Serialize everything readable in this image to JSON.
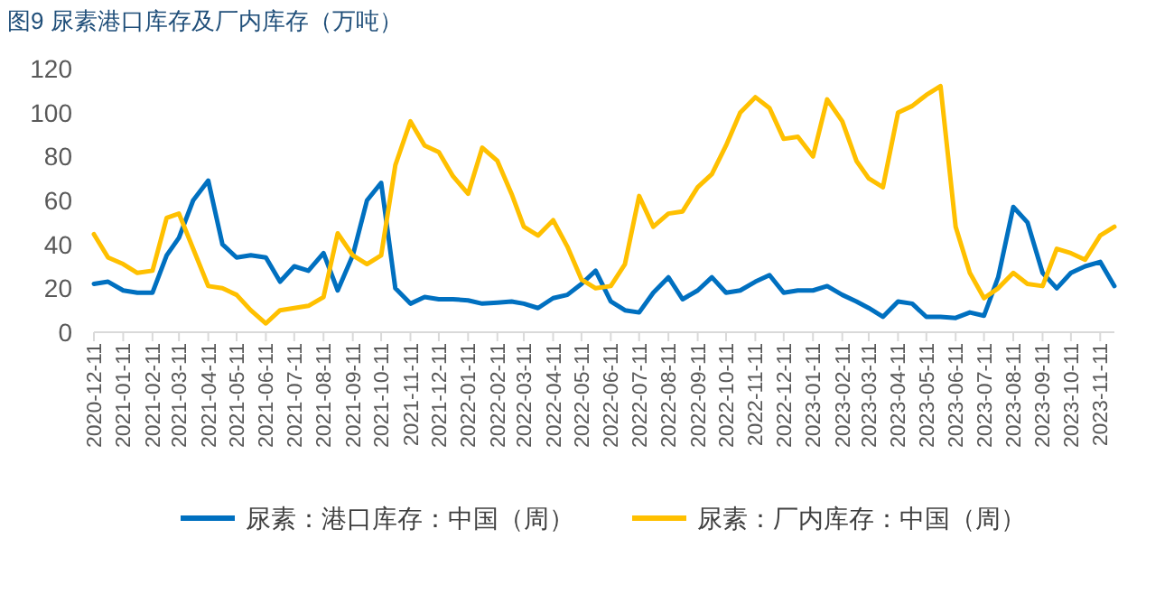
{
  "chart_data": {
    "type": "line",
    "title": "图9 尿素港口库存及厂内库存（万吨）",
    "x": [
      "2020-12-11",
      "2020-12-26",
      "2021-01-11",
      "2021-01-26",
      "2021-02-11",
      "2021-02-26",
      "2021-03-11",
      "2021-03-26",
      "2021-04-11",
      "2021-04-26",
      "2021-05-11",
      "2021-05-26",
      "2021-06-11",
      "2021-06-26",
      "2021-07-11",
      "2021-07-26",
      "2021-08-11",
      "2021-08-26",
      "2021-09-11",
      "2021-09-26",
      "2021-10-11",
      "2021-10-26",
      "2021-11-11",
      "2021-11-26",
      "2021-12-11",
      "2021-12-26",
      "2022-01-11",
      "2022-01-26",
      "2022-02-11",
      "2022-02-26",
      "2022-03-11",
      "2022-03-26",
      "2022-04-11",
      "2022-04-26",
      "2022-05-11",
      "2022-05-26",
      "2022-06-11",
      "2022-06-26",
      "2022-07-11",
      "2022-07-26",
      "2022-08-11",
      "2022-08-26",
      "2022-09-11",
      "2022-09-26",
      "2022-10-11",
      "2022-10-26",
      "2022-11-11",
      "2022-11-26",
      "2022-12-11",
      "2022-12-26",
      "2023-01-11",
      "2023-01-26",
      "2023-02-11",
      "2023-02-26",
      "2023-03-11",
      "2023-03-26",
      "2023-04-11",
      "2023-04-26",
      "2023-05-11",
      "2023-05-26",
      "2023-06-11",
      "2023-06-26",
      "2023-07-11",
      "2023-07-26",
      "2023-08-11",
      "2023-08-26",
      "2023-09-11",
      "2023-09-26",
      "2023-10-11",
      "2023-10-26",
      "2023-11-11",
      "2023-11-26"
    ],
    "series": [
      {
        "name": "尿素：港口库存：中国（周）",
        "color": "#0070c0",
        "values": [
          22,
          23,
          19,
          18,
          18,
          35,
          43,
          60,
          69,
          40,
          34,
          35,
          34,
          23,
          30,
          28,
          36,
          19,
          35,
          60,
          68,
          20,
          13,
          16,
          15,
          15,
          14.5,
          13,
          13.5,
          14,
          13,
          11,
          15.5,
          17,
          22,
          28,
          14,
          10,
          9,
          18,
          25,
          15,
          19,
          25,
          18,
          19,
          23,
          26,
          18,
          19,
          19,
          21,
          17,
          14,
          11,
          7,
          14,
          13,
          7,
          7,
          6.5,
          9,
          7.5,
          25,
          57,
          50,
          27,
          20,
          27,
          30,
          32,
          21
        ]
      },
      {
        "name": "尿素：厂内库存：中国（周）",
        "color": "#ffc000",
        "values": [
          44.6,
          34,
          31,
          27,
          28,
          52,
          54,
          38,
          21,
          20,
          17,
          10,
          4,
          10,
          11,
          12,
          16,
          45,
          35,
          31,
          35,
          76,
          96,
          85,
          82,
          71,
          63,
          84,
          78,
          63,
          48,
          44,
          51,
          39,
          24,
          20,
          21,
          31,
          62,
          48,
          54,
          55,
          66,
          72,
          85,
          100,
          107,
          102,
          88,
          89,
          80,
          106,
          96,
          78,
          70,
          66,
          100,
          103,
          108,
          112,
          48,
          27,
          15.5,
          20,
          27,
          22,
          21,
          38,
          36,
          33,
          44,
          48
        ]
      }
    ],
    "xlim": [
      "2020-12-11",
      "2023-11-26"
    ],
    "xticks": [
      "2020-12-11",
      "2021-01-11",
      "2021-02-11",
      "2021-03-11",
      "2021-04-11",
      "2021-05-11",
      "2021-06-11",
      "2021-07-11",
      "2021-08-11",
      "2021-09-11",
      "2021-10-11",
      "2021-11-11",
      "2021-12-11",
      "2022-01-11",
      "2022-02-11",
      "2022-03-11",
      "2022-04-11",
      "2022-05-11",
      "2022-06-11",
      "2022-07-11",
      "2022-08-11",
      "2022-09-11",
      "2022-10-11",
      "2022-11-11",
      "2022-12-11",
      "2023-01-11",
      "2023-02-11",
      "2023-03-11",
      "2023-04-11",
      "2023-05-11",
      "2023-06-11",
      "2023-07-11",
      "2023-08-11",
      "2023-09-11",
      "2023-10-11",
      "2023-11-11"
    ],
    "ylim": [
      0,
      120
    ],
    "yticks": [
      0,
      20,
      40,
      60,
      80,
      100,
      120
    ],
    "grid": false,
    "legend": "bottom",
    "marker": "none",
    "line_style": "solid"
  }
}
